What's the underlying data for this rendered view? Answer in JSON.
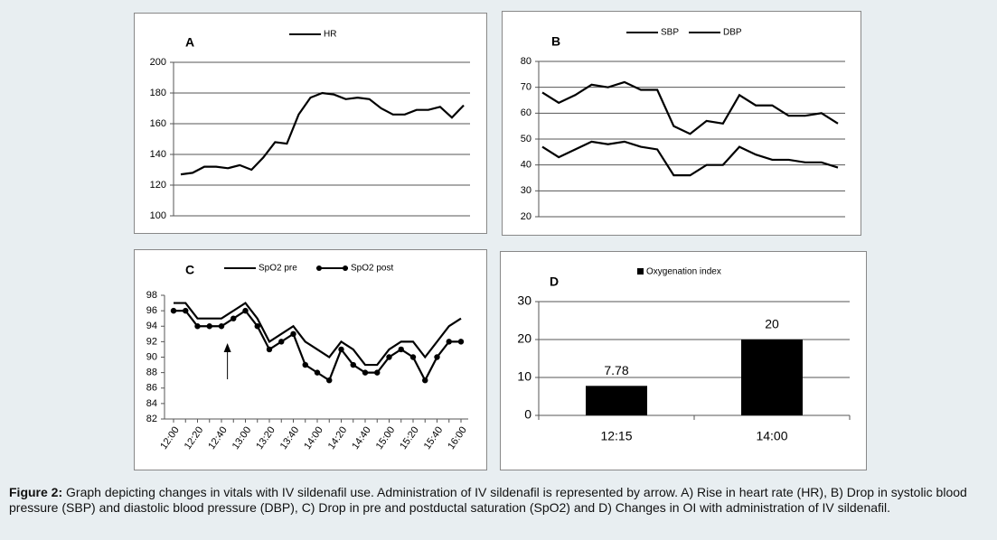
{
  "chart_data": [
    {
      "type": "line",
      "label": "A",
      "ylim": [
        100,
        200
      ],
      "yticks": [
        100,
        120,
        140,
        160,
        180,
        200
      ],
      "grid": true,
      "series": [
        {
          "name": "HR",
          "color": "#000000",
          "values": [
            127,
            128,
            132,
            132,
            131,
            133,
            130,
            138,
            148,
            147,
            166,
            177,
            180,
            179,
            176,
            177,
            176,
            170,
            166,
            166,
            169,
            169,
            171,
            164,
            172
          ]
        }
      ]
    },
    {
      "type": "line",
      "label": "B",
      "ylim": [
        20,
        80
      ],
      "yticks": [
        20,
        30,
        40,
        50,
        60,
        70,
        80
      ],
      "grid": true,
      "series": [
        {
          "name": "SBP",
          "color": "#000000",
          "values": [
            68,
            64,
            67,
            71,
            70,
            72,
            69,
            69,
            55,
            52,
            57,
            56,
            67,
            63,
            63,
            59,
            59,
            60,
            56
          ]
        },
        {
          "name": "DBP",
          "color": "#000000",
          "values": [
            47,
            43,
            46,
            49,
            48,
            49,
            47,
            46,
            36,
            36,
            40,
            40,
            47,
            44,
            42,
            42,
            41,
            41,
            39
          ]
        }
      ]
    },
    {
      "type": "line",
      "label": "C",
      "ylim": [
        82,
        98
      ],
      "yticks": [
        82,
        84,
        86,
        88,
        90,
        92,
        94,
        96,
        98
      ],
      "grid": false,
      "categories": [
        "12:00",
        null,
        "12:20",
        null,
        "12:40",
        null,
        "13:00",
        null,
        "13:20",
        null,
        "13:40",
        null,
        "14:00",
        null,
        "14:20",
        null,
        "14:40",
        null,
        "15:00",
        null,
        "15:20",
        null,
        "15:40",
        null,
        "16:00"
      ],
      "series": [
        {
          "name": "SpO2 pre",
          "color": "#000000",
          "values": [
            97,
            97,
            95,
            95,
            95,
            96,
            97,
            95,
            92,
            93,
            94,
            92,
            91,
            90,
            92,
            91,
            89,
            89,
            91,
            92,
            92,
            90,
            92,
            94,
            95
          ]
        },
        {
          "name": "SpO2 post",
          "color": "#000000",
          "markers": true,
          "values": [
            96,
            96,
            94,
            94,
            94,
            95,
            96,
            94,
            91,
            92,
            93,
            89,
            88,
            87,
            91,
            89,
            88,
            88,
            90,
            91,
            90,
            87,
            90,
            92,
            92
          ]
        }
      ]
    },
    {
      "type": "bar",
      "label": "D",
      "ylim": [
        0,
        30
      ],
      "yticks": [
        0,
        10,
        20,
        30
      ],
      "grid": true,
      "categories": [
        "12:15",
        "14:00"
      ],
      "series": [
        {
          "name": "Oxygenation index",
          "color": "#000000",
          "values": [
            7.78,
            20
          ]
        }
      ]
    }
  ],
  "caption": {
    "label": "Figure 2:",
    "text": "Graph depicting changes in vitals with IV sildenafil use. Administration of IV sildenafil is represented by arrow. A) Rise in heart rate (HR), B) Drop in systolic blood pressure (SBP) and diastolic blood pressure (DBP), C) Drop in pre and postductal saturation (SpO2) and D) Changes in OI with administration of IV sildenafil."
  }
}
